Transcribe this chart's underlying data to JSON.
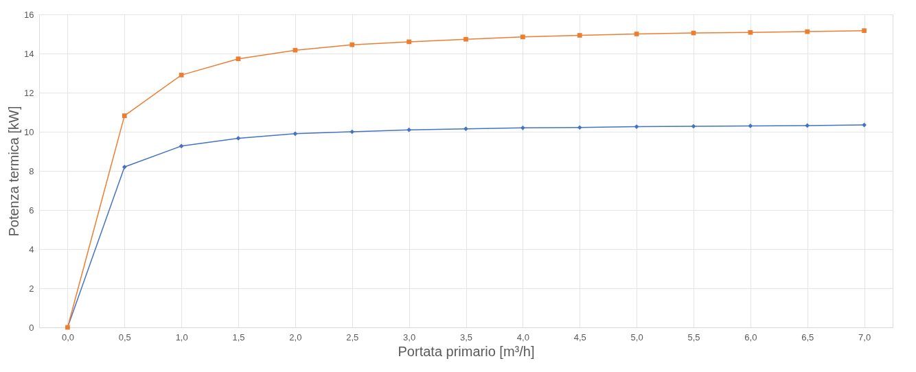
{
  "chart_data": {
    "type": "line",
    "xlabel": "Portata primario [m³/h]",
    "ylabel": "Potenza termica [kW]",
    "categories": [
      "0,0",
      "0,5",
      "1,0",
      "1,5",
      "2,0",
      "2,5",
      "3,0",
      "3,5",
      "4,0",
      "4,5",
      "5,0",
      "5,5",
      "6,0",
      "6,5",
      "7,0"
    ],
    "series": [
      {
        "color": "#4472c4",
        "marker": "diamond",
        "values": [
          0,
          8.2,
          9.27,
          9.67,
          9.9,
          10.0,
          10.1,
          10.15,
          10.2,
          10.22,
          10.26,
          10.28,
          10.3,
          10.32,
          10.35
        ]
      },
      {
        "color": "#ed7d31",
        "marker": "square",
        "values": [
          0,
          10.82,
          12.9,
          13.73,
          14.17,
          14.45,
          14.6,
          14.73,
          14.85,
          14.93,
          15.0,
          15.05,
          15.08,
          15.12,
          15.17
        ]
      }
    ],
    "ylim": [
      0,
      16
    ],
    "yticks": [
      0,
      2,
      4,
      6,
      8,
      10,
      12,
      14,
      16
    ],
    "grid": true,
    "line_style": "solid"
  }
}
